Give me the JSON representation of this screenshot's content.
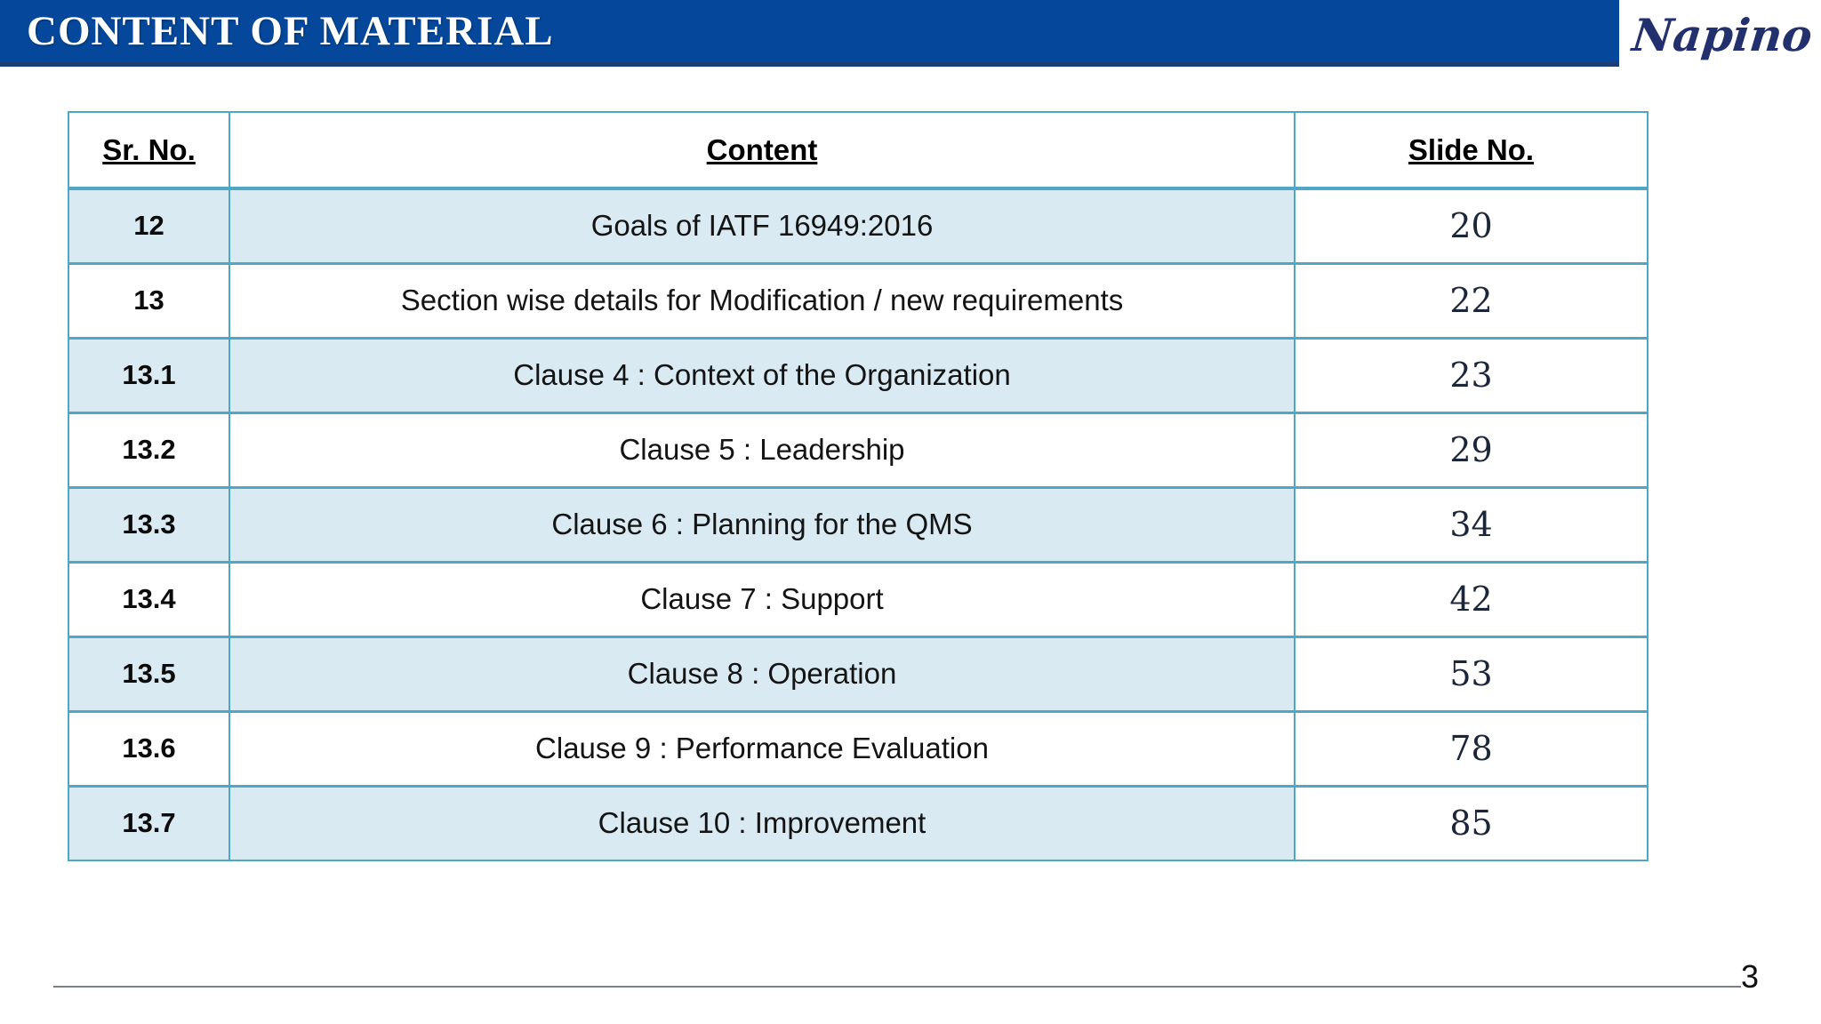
{
  "header": {
    "title": "CONTENT OF MATERIAL",
    "logo_text": "Napino"
  },
  "table": {
    "columns": [
      "Sr. No.",
      "Content",
      "Slide No."
    ],
    "rows": [
      {
        "sr": "12",
        "content": "Goals of IATF 16949:2016",
        "slide": "20"
      },
      {
        "sr": "13",
        "content": "Section wise details for Modification / new requirements",
        "slide": "22"
      },
      {
        "sr": "13.1",
        "content": "Clause 4 : Context of the Organization",
        "slide": "23"
      },
      {
        "sr": "13.2",
        "content": "Clause 5 : Leadership",
        "slide": "29"
      },
      {
        "sr": "13.3",
        "content": "Clause 6 : Planning for the QMS",
        "slide": "34"
      },
      {
        "sr": "13.4",
        "content": "Clause 7 : Support",
        "slide": "42"
      },
      {
        "sr": "13.5",
        "content": "Clause 8 : Operation",
        "slide": "53"
      },
      {
        "sr": "13.6",
        "content": "Clause 9 : Performance Evaluation",
        "slide": "78"
      },
      {
        "sr": "13.7",
        "content": "Clause 10 : Improvement",
        "slide": "85"
      }
    ]
  },
  "footer": {
    "page_number": "3"
  },
  "colors": {
    "title_bar_blue": "#05489B",
    "title_bar_edge": "#1c3e74",
    "table_border_teal": "#4FA6C5",
    "row_alt_blue": "#DAEAF3",
    "logo_navy": "#23306e",
    "footer_line_gray": "#77818f"
  }
}
